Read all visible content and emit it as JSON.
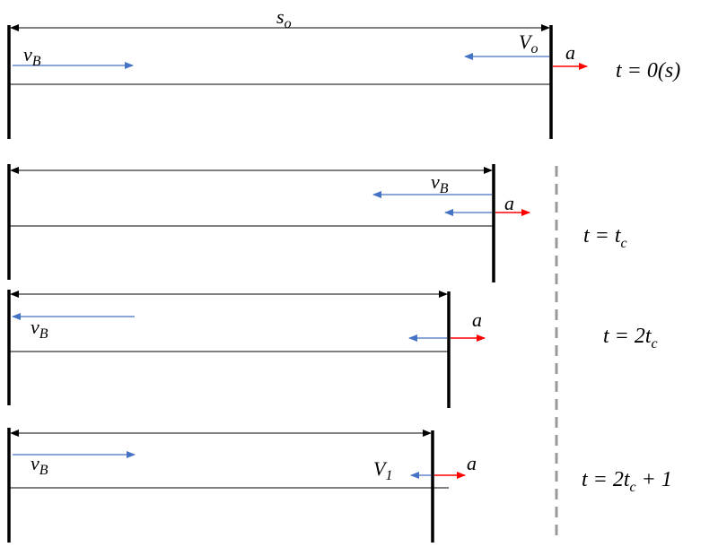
{
  "panels": [
    {
      "distance": {
        "main": "s",
        "sub": "o"
      },
      "labels": [
        {
          "main": "v",
          "sub": "B"
        },
        {
          "main": "V",
          "sub": "o"
        },
        {
          "main": "a"
        }
      ],
      "time": {
        "main": "t = 0(s)"
      }
    },
    {
      "labels": [
        {
          "main": "v",
          "sub": "B"
        },
        {
          "main": "a"
        }
      ],
      "time": {
        "main": "t = t",
        "sub": "c"
      }
    },
    {
      "labels": [
        {
          "main": "v",
          "sub": "B"
        },
        {
          "main": "a"
        }
      ],
      "time": {
        "main": "t = 2t",
        "sub": "c"
      }
    },
    {
      "labels": [
        {
          "main": "v",
          "sub": "B"
        },
        {
          "main": "V",
          "sub": "1"
        },
        {
          "main": "a"
        }
      ],
      "time": {
        "main": "t = 2t",
        "sub": "c",
        "post": " + 1"
      }
    }
  ]
}
